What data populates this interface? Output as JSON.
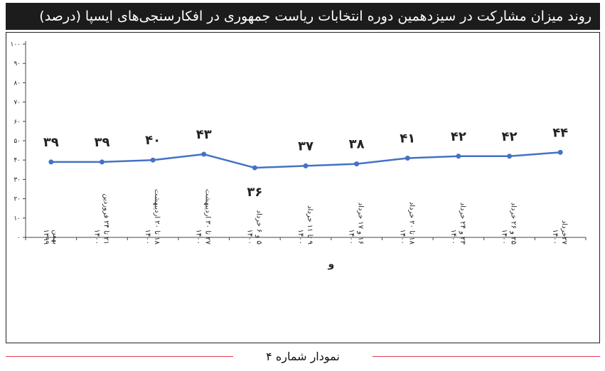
{
  "header": {
    "title": "روند میزان مشارکت در سیزدهمین دوره انتخابات ریاست جمهوری در افکارسنجی‌های ایسپا (درصد)"
  },
  "footer": {
    "label": "نمودار شماره ۴"
  },
  "chart_data": {
    "type": "line",
    "title": "روند میزان مشارکت در سیزدهمین دوره انتخابات ریاست جمهوری در افکارسنجی‌های ایسپا (درصد)",
    "xlabel": "",
    "ylabel": "",
    "ylim": [
      0,
      100
    ],
    "y_ticks": [
      0,
      10,
      20,
      30,
      40,
      50,
      60,
      70,
      80,
      90,
      100
    ],
    "y_tick_labels": [
      "۰",
      "۱۰",
      "۲۰",
      "۳۰",
      "۴۰",
      "۵۰",
      "۶۰",
      "۷۰",
      "۸۰",
      "۹۰",
      "۱۰۰"
    ],
    "grid": false,
    "legend": "none",
    "color": "#4472c4",
    "categories": [
      [
        "بهمن",
        "۱۳۹۹"
      ],
      [
        "۲۱ تا ۲۴ فروردین",
        "۱۴۰۰"
      ],
      [
        "۱۸ تا ۲۰ اردیبهشت",
        "۱۴۰۰"
      ],
      [
        "۲۷ تا ۳۰ اردیبهشت",
        "۱۴۰۰"
      ],
      [
        "۵ و ۶ خرداد",
        "۱۴۰۰"
      ],
      [
        "۹ تا ۱۱ خرداد",
        "۱۴۰۰"
      ],
      [
        "۱۶ و ۱۷ خرداد",
        "۱۴۰۰"
      ],
      [
        "۱۸ تا ۲۰ خرداد",
        "۱۴۰۰"
      ],
      [
        "۲۳ و ۲۴ خرداد",
        "۱۴۰۰"
      ],
      [
        "۲۵ و ۲۶ خرداد",
        "۱۴۰۰"
      ],
      [
        "۲۷خرداد",
        "۱۴۰۰"
      ]
    ],
    "values": [
      39,
      39,
      40,
      43,
      36,
      37,
      38,
      41,
      42,
      42,
      44
    ],
    "data_labels": [
      "۳۹",
      "۳۹",
      "۴۰",
      "۴۳",
      "۳۶",
      "۳۷",
      "۳۸",
      "۴۱",
      "۴۲",
      "۴۲",
      "۴۴"
    ],
    "annotation": "و"
  }
}
